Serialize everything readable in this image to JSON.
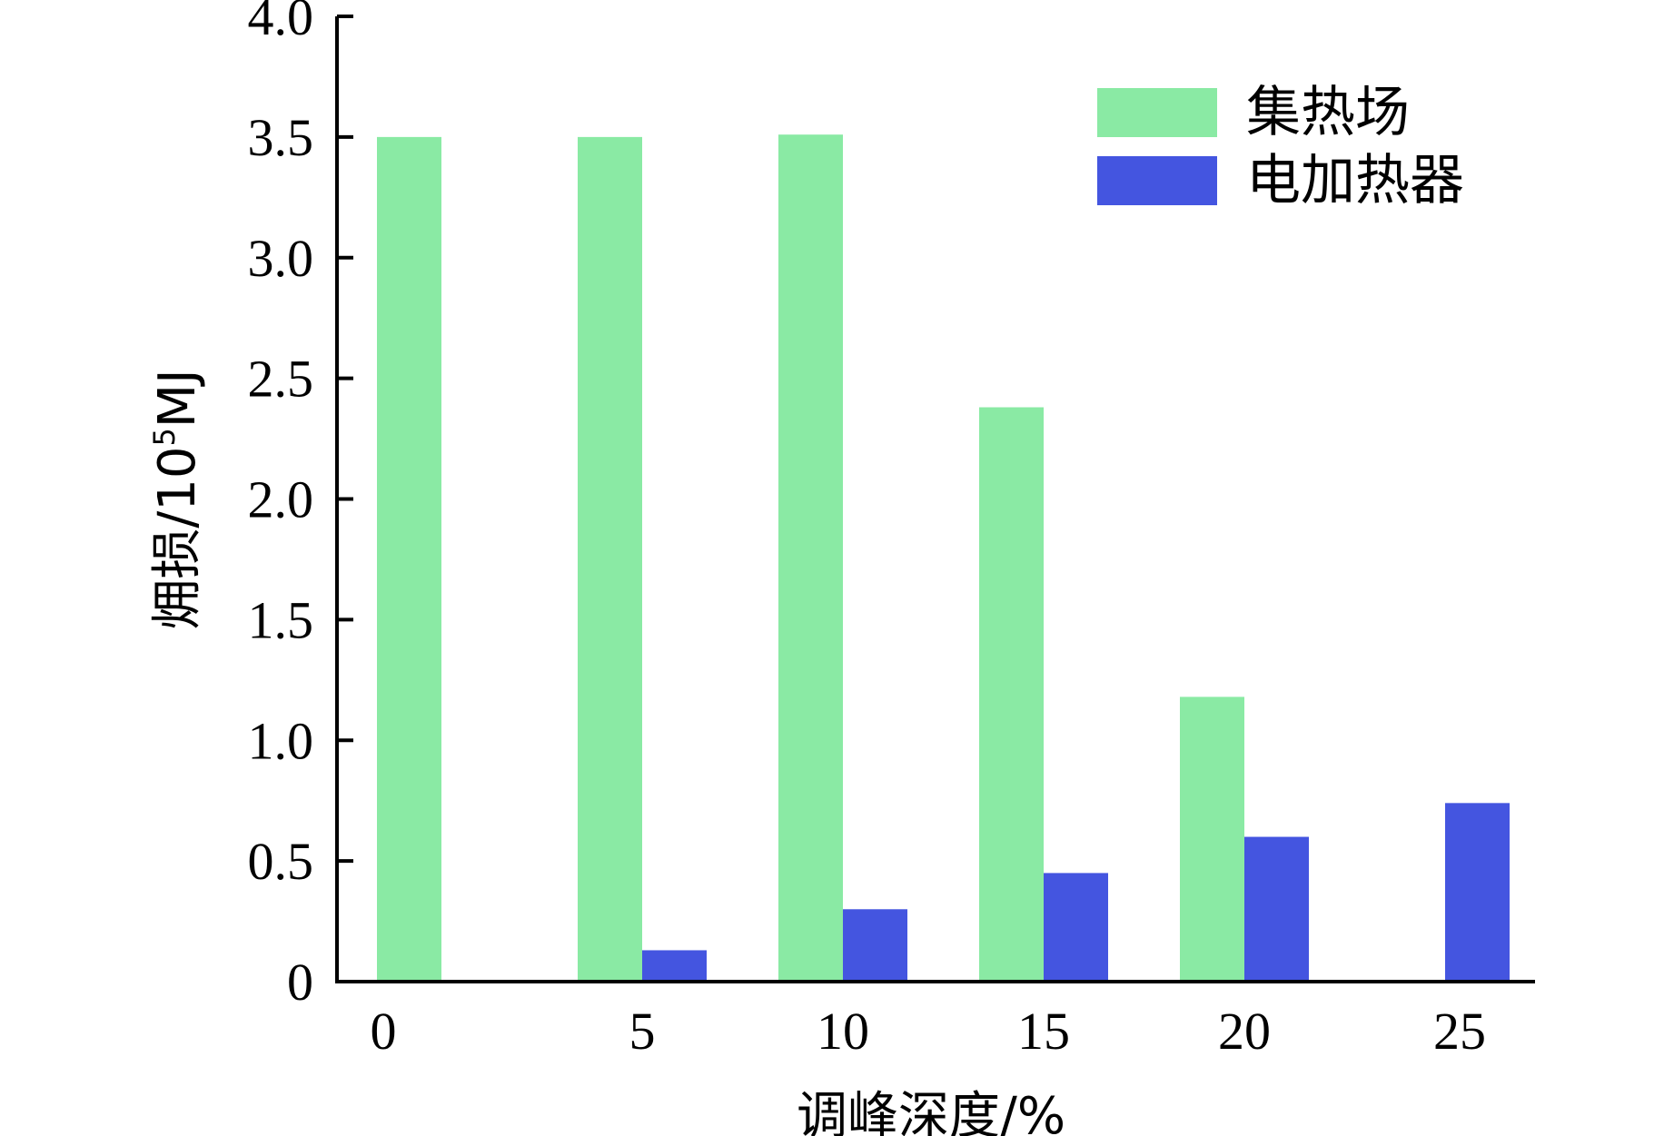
{
  "chart_data": {
    "type": "bar",
    "xlabel": "调峰深度/%",
    "ylabel_main": "㶲损/10",
    "ylabel_sup": "5",
    "ylabel_unit": "MJ",
    "categories": [
      "0",
      "5",
      "10",
      "15",
      "20",
      "25"
    ],
    "ylim": [
      0,
      4.0
    ],
    "yticks": [
      "0",
      "0.5",
      "1.0",
      "1.5",
      "2.0",
      "2.5",
      "3.0",
      "3.5",
      "4.0"
    ],
    "series": [
      {
        "name": "集热场",
        "color": "#8aeaa4",
        "values": [
          3.5,
          3.5,
          3.51,
          2.38,
          1.18,
          0
        ]
      },
      {
        "name": "电加热器",
        "color": "#4455e0",
        "values": [
          0,
          0.13,
          0.3,
          0.45,
          0.6,
          0.74
        ]
      }
    ],
    "legend_position": "top-right",
    "grid": false
  }
}
